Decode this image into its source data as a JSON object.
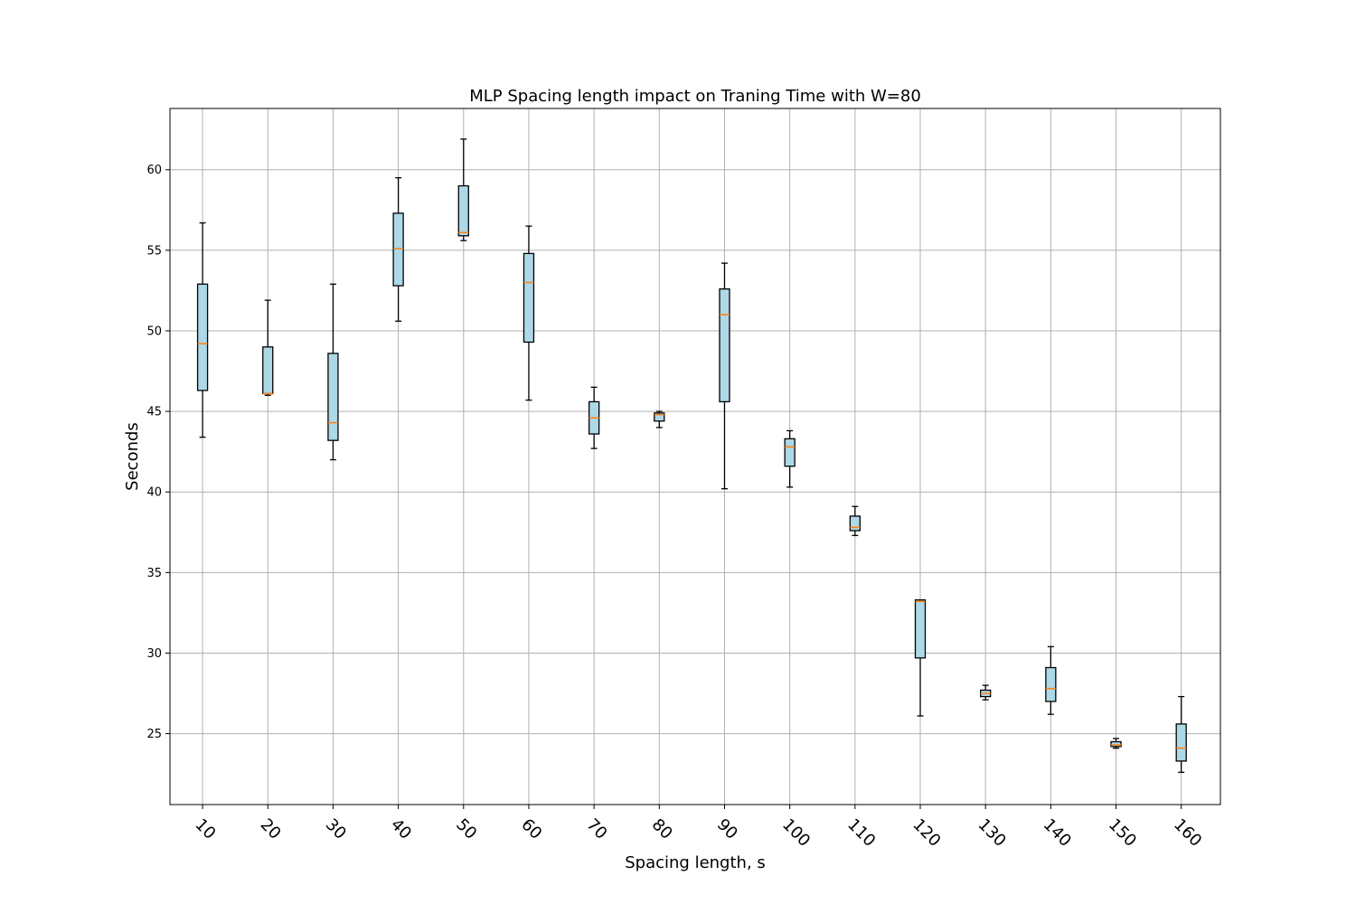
{
  "chart_data": {
    "type": "box",
    "title": "MLP Spacing length impact on Traning Time with W=80",
    "xlabel": "Spacing length, s",
    "ylabel": "Seconds",
    "ylim": [
      20.6,
      63.8
    ],
    "yticks": [
      25,
      30,
      35,
      40,
      45,
      50,
      55,
      60
    ],
    "grid": true,
    "colors": {
      "box_fill": "#add8e6",
      "box_edge": "#000000",
      "median": "#ff7f0e",
      "grid": "#b0b0b0"
    },
    "categories": [
      "10",
      "20",
      "30",
      "40",
      "50",
      "60",
      "70",
      "80",
      "90",
      "100",
      "110",
      "120",
      "130",
      "140",
      "150",
      "160"
    ],
    "boxes": [
      {
        "label": "10",
        "whislo": 43.4,
        "q1": 46.3,
        "med": 49.2,
        "q3": 52.9,
        "whishi": 56.7
      },
      {
        "label": "20",
        "whislo": 46.0,
        "q1": 46.1,
        "med": 46.1,
        "q3": 49.0,
        "whishi": 51.9
      },
      {
        "label": "30",
        "whislo": 42.0,
        "q1": 43.2,
        "med": 44.3,
        "q3": 48.6,
        "whishi": 52.9
      },
      {
        "label": "40",
        "whislo": 50.6,
        "q1": 52.8,
        "med": 55.1,
        "q3": 57.3,
        "whishi": 59.5
      },
      {
        "label": "50",
        "whislo": 55.6,
        "q1": 55.9,
        "med": 56.1,
        "q3": 59.0,
        "whishi": 61.9
      },
      {
        "label": "60",
        "whislo": 45.7,
        "q1": 49.3,
        "med": 53.0,
        "q3": 54.8,
        "whishi": 56.5
      },
      {
        "label": "70",
        "whislo": 42.7,
        "q1": 43.6,
        "med": 44.6,
        "q3": 45.6,
        "whishi": 46.5
      },
      {
        "label": "80",
        "whislo": 44.0,
        "q1": 44.4,
        "med": 44.8,
        "q3": 44.9,
        "whishi": 45.0
      },
      {
        "label": "90",
        "whislo": 40.2,
        "q1": 45.6,
        "med": 51.0,
        "q3": 52.6,
        "whishi": 54.2
      },
      {
        "label": "100",
        "whislo": 40.3,
        "q1": 41.6,
        "med": 42.8,
        "q3": 43.3,
        "whishi": 43.8
      },
      {
        "label": "110",
        "whislo": 37.3,
        "q1": 37.6,
        "med": 37.8,
        "q3": 38.5,
        "whishi": 39.1
      },
      {
        "label": "120",
        "whislo": 26.1,
        "q1": 29.7,
        "med": 33.2,
        "q3": 33.3,
        "whishi": 33.3
      },
      {
        "label": "130",
        "whislo": 27.1,
        "q1": 27.3,
        "med": 27.5,
        "q3": 27.7,
        "whishi": 28.0
      },
      {
        "label": "140",
        "whislo": 26.2,
        "q1": 27.0,
        "med": 27.8,
        "q3": 29.1,
        "whishi": 30.4
      },
      {
        "label": "150",
        "whislo": 24.1,
        "q1": 24.2,
        "med": 24.3,
        "q3": 24.5,
        "whishi": 24.7
      },
      {
        "label": "160",
        "whislo": 22.6,
        "q1": 23.3,
        "med": 24.1,
        "q3": 25.6,
        "whishi": 27.3
      }
    ]
  }
}
